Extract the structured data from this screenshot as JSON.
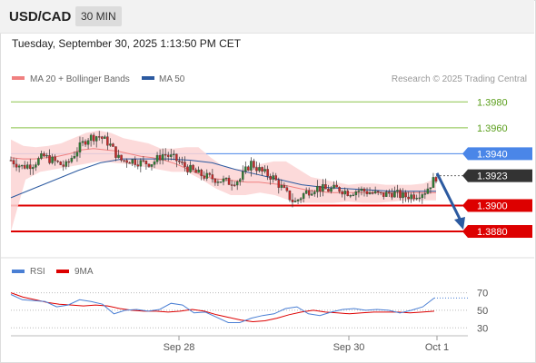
{
  "header": {
    "pair": "USD/CAD",
    "timeframe": "30 MIN",
    "datetime": "Tuesday, September 30, 2025 1:13:50 PM CET"
  },
  "chart_data": [
    {
      "type": "candlestick",
      "legend": [
        {
          "label": "MA 20 + Bollinger Bands",
          "color": "#f08080"
        },
        {
          "label": "MA 50",
          "color": "#2c5aa0"
        }
      ],
      "legend_placement": "top-left",
      "credit": "Research © 2025 Trading Central",
      "ylim": [
        1.3866,
        1.399
      ],
      "levels": [
        {
          "label": "1.3980",
          "value": 1.398,
          "kind": "resistance",
          "color": "#8bc34a"
        },
        {
          "label": "1.3960",
          "value": 1.396,
          "kind": "resistance",
          "color": "#8bc34a"
        },
        {
          "label": "1.3940",
          "value": 1.394,
          "kind": "pivot",
          "color": "#4a86e8"
        },
        {
          "label": "1.3923",
          "value": 1.3923,
          "kind": "last-price",
          "color": "#333333"
        },
        {
          "label": "1.3900",
          "value": 1.39,
          "kind": "support",
          "color": "#dd0000"
        },
        {
          "label": "1.3880",
          "value": 1.388,
          "kind": "support",
          "color": "#dd0000"
        }
      ],
      "forecast_arrow": {
        "from": 1.3925,
        "to": 1.388,
        "direction": "down",
        "color": "#2c5aa0"
      },
      "price_path": [
        1.3935,
        1.393,
        1.3932,
        1.3938,
        1.3934,
        1.393,
        1.3942,
        1.3952,
        1.3954,
        1.3948,
        1.3935,
        1.3935,
        1.3933,
        1.3933,
        1.394,
        1.3936,
        1.393,
        1.3925,
        1.3922,
        1.392,
        1.3918,
        1.392,
        1.3933,
        1.3926,
        1.3922,
        1.3912,
        1.3902,
        1.391,
        1.3914,
        1.3912,
        1.3913,
        1.391,
        1.3912,
        1.391,
        1.3908,
        1.391,
        1.3907,
        1.3908,
        1.3911,
        1.3922
      ],
      "ma20": [
        1.3937,
        1.3936,
        1.3936,
        1.3937,
        1.3938,
        1.394,
        1.3943,
        1.3944,
        1.3943,
        1.3942,
        1.394,
        1.3938,
        1.3937,
        1.3935,
        1.3932,
        1.3928,
        1.3924,
        1.3921,
        1.392,
        1.3919,
        1.3918,
        1.3918,
        1.3917,
        1.3916,
        1.3914,
        1.3912,
        1.3911,
        1.391,
        1.391,
        1.391,
        1.391,
        1.391,
        1.391,
        1.391,
        1.391,
        1.391,
        1.391
      ],
      "bb_upper": [
        1.3951,
        1.3946,
        1.3945,
        1.3946,
        1.3948,
        1.3952,
        1.3956,
        1.3958,
        1.3956,
        1.3952,
        1.395,
        1.3948,
        1.3944,
        1.3944,
        1.3945,
        1.3945,
        1.3937,
        1.393,
        1.3928,
        1.3928,
        1.3932,
        1.3934,
        1.3934,
        1.3928,
        1.3922,
        1.392,
        1.3918,
        1.3916,
        1.3917,
        1.3917,
        1.3916,
        1.3916,
        1.3916,
        1.3917,
        1.3921
      ],
      "bb_lower": [
        1.388,
        1.392,
        1.3926,
        1.3928,
        1.393,
        1.3932,
        1.3934,
        1.3933,
        1.3932,
        1.393,
        1.3928,
        1.3926,
        1.3926,
        1.392,
        1.3913,
        1.3908,
        1.3908,
        1.391,
        1.3908,
        1.3904,
        1.3902,
        1.3902,
        1.3902,
        1.3903,
        1.3902,
        1.3902,
        1.3903,
        1.3904,
        1.3904,
        1.3904
      ],
      "ma50": [
        1.3906,
        1.3913,
        1.392,
        1.3927,
        1.3933,
        1.3936,
        1.3936,
        1.3936,
        1.3935,
        1.3933,
        1.3928,
        1.3924,
        1.392,
        1.3916,
        1.3914,
        1.3913,
        1.3912,
        1.3911,
        1.3911,
        1.3911
      ]
    },
    {
      "type": "line",
      "legend": [
        {
          "label": "RSI",
          "color": "#4a7fd4"
        },
        {
          "label": "9MA",
          "color": "#dd0000"
        }
      ],
      "yticks": [
        "70",
        "50",
        "30"
      ],
      "ylim": [
        22,
        82
      ],
      "rsi": [
        68,
        62,
        61,
        60,
        54,
        56,
        62,
        60,
        57,
        46,
        50,
        51,
        49,
        51,
        58,
        56,
        47,
        48,
        42,
        36,
        36,
        41,
        44,
        46,
        52,
        54,
        46,
        44,
        48,
        51,
        52,
        50,
        51,
        50,
        47,
        50,
        54,
        64
      ],
      "rsi_ma": [
        70,
        65,
        62,
        59,
        57,
        56,
        55,
        56,
        55,
        52,
        50,
        49,
        49,
        48,
        49,
        51,
        49,
        45,
        42,
        39,
        37,
        38,
        41,
        45,
        48,
        50,
        48,
        47,
        46,
        47,
        48,
        48,
        48,
        47,
        48,
        49
      ]
    }
  ],
  "xaxis": {
    "ticks": [
      "Sep 28",
      "Sep 30",
      "Oct 1"
    ]
  }
}
